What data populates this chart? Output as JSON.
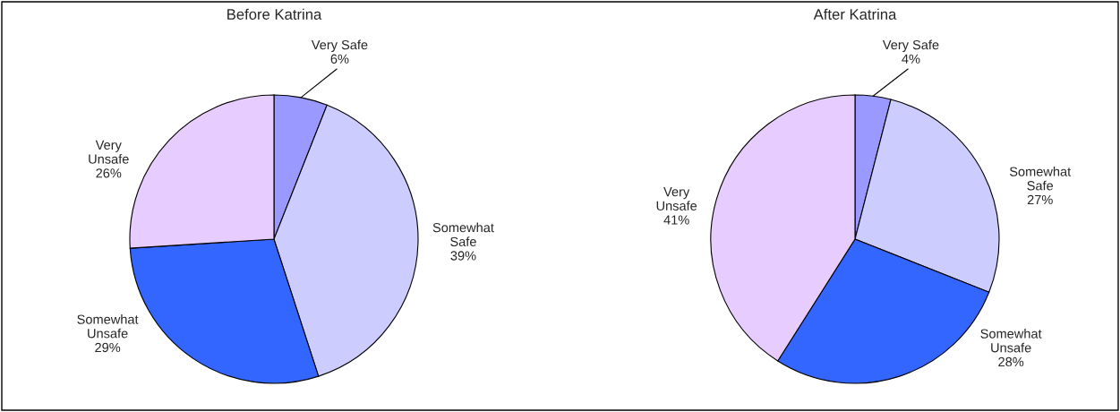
{
  "chart_data": [
    {
      "type": "pie",
      "title": "Before Katrina",
      "categories": [
        "Very Safe",
        "Somewhat\nSafe",
        "Somewhat\nUnsafe",
        "Very\nUnsafe"
      ],
      "values": [
        6,
        39,
        29,
        26
      ],
      "value_labels": [
        "6%",
        "39%",
        "29%",
        "26%"
      ],
      "colors": [
        "#9999ff",
        "#ccccff",
        "#3366ff",
        "#e6ccff"
      ],
      "legend": false
    },
    {
      "type": "pie",
      "title": "After Katrina",
      "categories": [
        "Very Safe",
        "Somewhat\nSafe",
        "Somewhat\nUnsafe",
        "Very\nUnsafe"
      ],
      "values": [
        4,
        27,
        28,
        41
      ],
      "value_labels": [
        "4%",
        "27%",
        "28%",
        "41%"
      ],
      "colors": [
        "#9999ff",
        "#ccccff",
        "#3366ff",
        "#e6ccff"
      ],
      "legend": false
    }
  ]
}
